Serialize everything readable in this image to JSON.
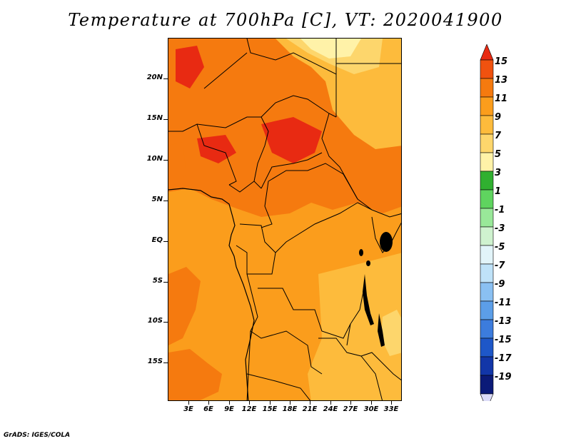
{
  "title": "Temperature at 700hPa [C], VT: 2020041900",
  "credit": "GrADS: IGES/COLA",
  "axes": {
    "lat_labels": [
      "20N",
      "15N",
      "10N",
      "5N",
      "EQ",
      "5S",
      "10S",
      "15S"
    ],
    "lon_labels": [
      "3E",
      "6E",
      "9E",
      "12E",
      "15E",
      "18E",
      "21E",
      "24E",
      "27E",
      "30E",
      "33E"
    ],
    "lat_range": [
      -20.2,
      24.5
    ],
    "lon_range": [
      0,
      34.5
    ]
  },
  "colorbar": {
    "levels": [
      "15",
      "13",
      "11",
      "9",
      "7",
      "5",
      "3",
      "1",
      "-1",
      "-3",
      "-5",
      "-7",
      "-9",
      "-11",
      "-13",
      "-15",
      "-17",
      "-19"
    ],
    "colors": [
      "#e82a12",
      "#f0520f",
      "#f57a0f",
      "#fb9d1c",
      "#fdbb3c",
      "#fdd66c",
      "#fff2a8",
      "#30b030",
      "#5fd45f",
      "#99e899",
      "#cff2cf",
      "#e2f4f9",
      "#bfe2f8",
      "#8ac0f2",
      "#5c9ee8",
      "#3c7cdd",
      "#1e57c8",
      "#1236a8",
      "#0b1a78",
      "#dcdcf8"
    ]
  },
  "field_colors": {
    "t13": "#f0520f",
    "t11": "#f57a0f",
    "t9": "#fb9d1c",
    "t7": "#fdbb3c",
    "t5": "#fdd66c",
    "t3": "#fff2a8"
  }
}
